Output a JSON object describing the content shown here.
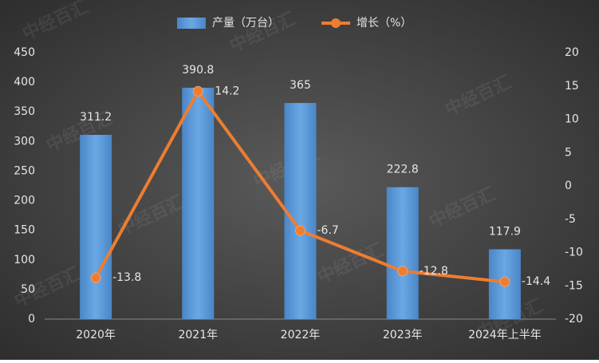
{
  "chart_data": {
    "type": "bar-line",
    "watermark": "中经百汇",
    "categories": [
      "2020年",
      "2021年",
      "2022年",
      "2023年",
      "2024年上半年"
    ],
    "series": [
      {
        "name": "产量（万台）",
        "type": "bar",
        "color": "#5b9bd5",
        "values": [
          311.2,
          390.8,
          365,
          222.8,
          117.9
        ]
      },
      {
        "name": "增长（%）",
        "type": "line",
        "axis": "y2",
        "color": "#ed7d31",
        "values": [
          -13.8,
          14.2,
          -6.7,
          -12.8,
          -14.4
        ]
      }
    ],
    "ylim": [
      0,
      450
    ],
    "yticks": [
      0,
      50,
      100,
      150,
      200,
      250,
      300,
      350,
      400,
      450
    ],
    "y2lim": [
      -20,
      20
    ],
    "y2ticks": [
      -20,
      -15,
      -10,
      -5,
      0,
      5,
      10,
      15,
      20
    ]
  }
}
